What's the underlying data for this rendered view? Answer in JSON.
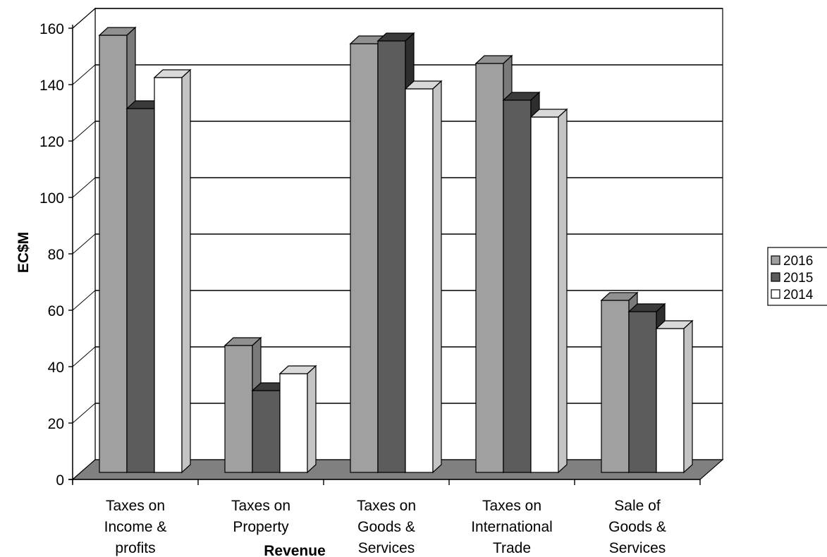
{
  "chart_data": {
    "type": "bar",
    "title": "",
    "xlabel": "Revenue",
    "ylabel": "EC$M",
    "ylim": [
      0,
      160
    ],
    "yticks": [
      0,
      20,
      40,
      60,
      80,
      100,
      120,
      140,
      160
    ],
    "grid": true,
    "legend_position": "right",
    "categories": [
      [
        "Taxes on",
        "Income &",
        "profits"
      ],
      [
        "Taxes on",
        "Property"
      ],
      [
        "Taxes on",
        "Goods &",
        "Services"
      ],
      [
        "Taxes on",
        "International",
        "Trade"
      ],
      [
        "Sale of",
        "Goods &",
        "Services"
      ]
    ],
    "series": [
      {
        "name": "2016",
        "values": [
          155,
          45,
          152,
          145,
          61
        ],
        "color": "#a0a0a0",
        "color_top": "#909090",
        "color_side": "#7a7a7a"
      },
      {
        "name": "2015",
        "values": [
          129,
          29,
          153,
          132,
          57
        ],
        "color": "#5c5c5c",
        "color_top": "#3a3a3a",
        "color_side": "#2e2e2e"
      },
      {
        "name": "2014",
        "values": [
          140,
          35,
          136,
          126,
          51
        ],
        "color": "#ffffff",
        "color_top": "#d9d9d9",
        "color_side": "#c4c4c4"
      }
    ]
  }
}
